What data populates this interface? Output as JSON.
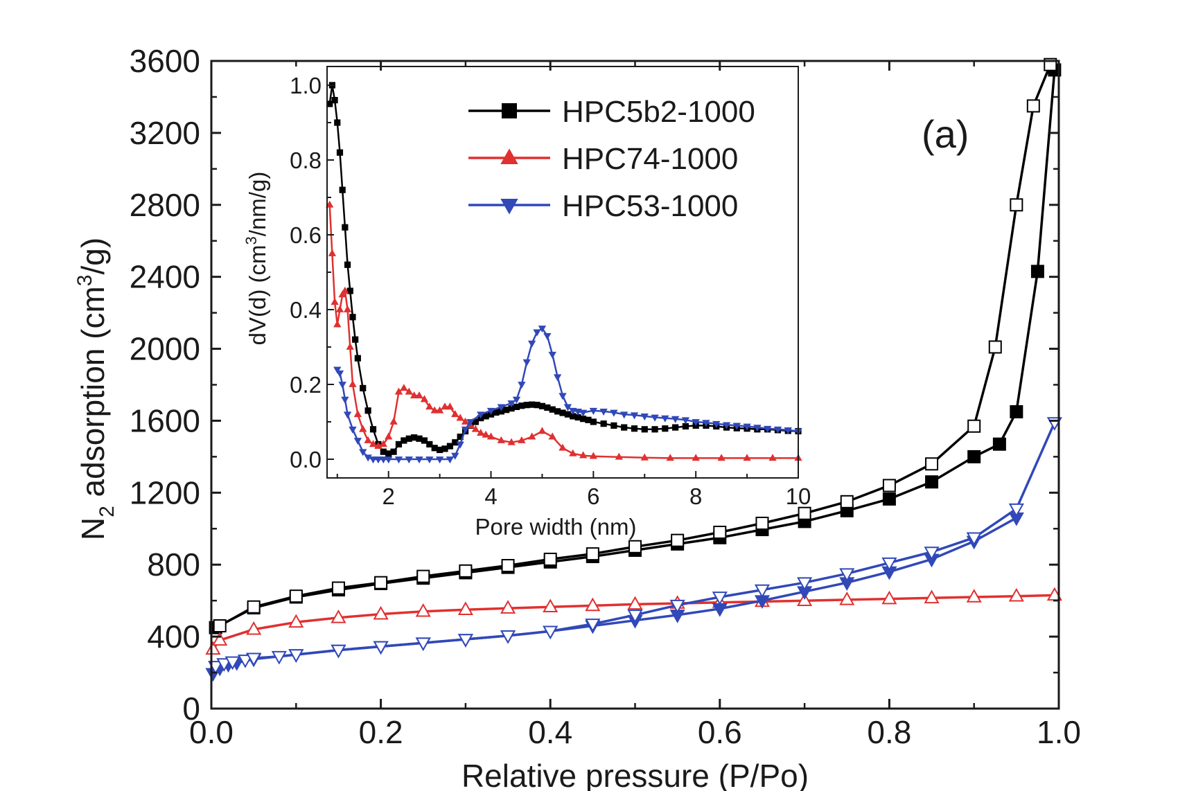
{
  "chart_data": [
    {
      "type": "line",
      "panel_label": "(a)",
      "xlabel": "Relative pressure (P/Po)",
      "ylabel_parts": [
        "N",
        "2",
        " adsorption (cm",
        "3",
        "/g)"
      ],
      "xlim": [
        0,
        1.0
      ],
      "ylim": [
        0,
        3600
      ],
      "x_ticks": [
        "0.0",
        "0.2",
        "0.4",
        "0.6",
        "0.8",
        "1.0"
      ],
      "y_ticks": [
        "0",
        "400",
        "800",
        "1200",
        "1600",
        "2000",
        "2400",
        "2800",
        "3200",
        "3600"
      ],
      "series": [
        {
          "name": "HPC5b2-1000",
          "color": "#000000",
          "marker": "square",
          "branches": [
            {
              "fill": "filled",
              "x": [
                0.005,
                0.05,
                0.1,
                0.15,
                0.2,
                0.25,
                0.3,
                0.35,
                0.4,
                0.45,
                0.5,
                0.55,
                0.6,
                0.65,
                0.7,
                0.75,
                0.8,
                0.85,
                0.9,
                0.93,
                0.95,
                0.975,
                0.995
              ],
              "y": [
                450,
                560,
                620,
                660,
                695,
                725,
                755,
                785,
                815,
                845,
                880,
                915,
                950,
                995,
                1040,
                1100,
                1165,
                1260,
                1400,
                1470,
                1650,
                2430,
                3550
              ]
            },
            {
              "fill": "open",
              "x": [
                0.01,
                0.05,
                0.1,
                0.15,
                0.2,
                0.25,
                0.3,
                0.35,
                0.4,
                0.45,
                0.5,
                0.55,
                0.6,
                0.65,
                0.7,
                0.75,
                0.8,
                0.85,
                0.9,
                0.925,
                0.95,
                0.97,
                0.99
              ],
              "y": [
                460,
                565,
                625,
                670,
                700,
                735,
                765,
                795,
                830,
                860,
                900,
                935,
                980,
                1030,
                1085,
                1150,
                1240,
                1360,
                1570,
                2010,
                2800,
                3350,
                3580
              ]
            }
          ]
        },
        {
          "name": "HPC74-1000",
          "color": "#e03030",
          "marker": "triangle-up",
          "branches": [
            {
              "fill": "open",
              "x": [
                0.002,
                0.01,
                0.05,
                0.1,
                0.15,
                0.2,
                0.25,
                0.3,
                0.35,
                0.4,
                0.45,
                0.5,
                0.55,
                0.6,
                0.65,
                0.7,
                0.75,
                0.8,
                0.85,
                0.9,
                0.95,
                0.995
              ],
              "y": [
                330,
                380,
                440,
                480,
                505,
                525,
                540,
                550,
                558,
                565,
                572,
                580,
                585,
                590,
                595,
                600,
                605,
                610,
                615,
                620,
                625,
                630
              ]
            }
          ]
        },
        {
          "name": "HPC53-1000",
          "color": "#3048b8",
          "marker": "triangle-down",
          "branches": [
            {
              "fill": "filled",
              "x": [
                0.002,
                0.01,
                0.02,
                0.03,
                0.05,
                0.1,
                0.15,
                0.2,
                0.25,
                0.3,
                0.35,
                0.4,
                0.45,
                0.5,
                0.55,
                0.6,
                0.65,
                0.7,
                0.75,
                0.8,
                0.85,
                0.9,
                0.95
              ],
              "y": [
                195,
                225,
                245,
                255,
                275,
                300,
                325,
                345,
                365,
                385,
                405,
                430,
                460,
                490,
                520,
                555,
                600,
                650,
                700,
                760,
                830,
                930,
                1060
              ]
            },
            {
              "fill": "open",
              "x": [
                0.005,
                0.015,
                0.025,
                0.04,
                0.05,
                0.08,
                0.1,
                0.15,
                0.2,
                0.25,
                0.3,
                0.35,
                0.4,
                0.45,
                0.5,
                0.55,
                0.6,
                0.65,
                0.7,
                0.75,
                0.8,
                0.85,
                0.9,
                0.95,
                0.995
              ],
              "y": [
                235,
                250,
                260,
                270,
                280,
                290,
                300,
                325,
                345,
                365,
                385,
                405,
                430,
                470,
                520,
                575,
                620,
                660,
                700,
                750,
                810,
                870,
                950,
                1110,
                1590
              ]
            }
          ]
        }
      ]
    },
    {
      "type": "line",
      "role": "inset",
      "xlabel": "Pore width (nm)",
      "ylabel_parts": [
        "dV(d) (cm",
        "3",
        "/nm/g)"
      ],
      "xlim": [
        0.8,
        10
      ],
      "ylim": [
        -0.05,
        1.05
      ],
      "x_ticks": [
        "2",
        "4",
        "6",
        "8",
        "10"
      ],
      "y_ticks": [
        "0.0",
        "0.2",
        "0.4",
        "0.6",
        "0.8",
        "1.0"
      ],
      "series": [
        {
          "name": "HPC5b2-1000",
          "color": "#000000",
          "marker": "square",
          "x": [
            0.85,
            0.9,
            0.95,
            1.0,
            1.05,
            1.1,
            1.15,
            1.2,
            1.25,
            1.3,
            1.35,
            1.4,
            1.5,
            1.6,
            1.7,
            1.8,
            1.9,
            2.0,
            2.1,
            2.2,
            2.3,
            2.4,
            2.5,
            2.6,
            2.7,
            2.8,
            2.9,
            3.0,
            3.1,
            3.2,
            3.3,
            3.4,
            3.5,
            3.6,
            3.7,
            3.8,
            3.9,
            4.0,
            4.1,
            4.2,
            4.3,
            4.4,
            4.5,
            4.6,
            4.7,
            4.8,
            4.9,
            5.0,
            5.1,
            5.2,
            5.3,
            5.4,
            5.5,
            5.6,
            5.7,
            5.8,
            5.9,
            6.0,
            6.2,
            6.4,
            6.6,
            6.8,
            7.0,
            7.2,
            7.4,
            7.6,
            7.8,
            8.0,
            8.2,
            8.4,
            8.6,
            8.8,
            9.0,
            9.2,
            9.4,
            9.6,
            9.8,
            10.0
          ],
          "y": [
            0.95,
            1.0,
            0.96,
            0.9,
            0.82,
            0.72,
            0.62,
            0.52,
            0.45,
            0.38,
            0.32,
            0.27,
            0.19,
            0.13,
            0.08,
            0.04,
            0.02,
            0.015,
            0.02,
            0.04,
            0.05,
            0.055,
            0.058,
            0.055,
            0.05,
            0.04,
            0.03,
            0.025,
            0.028,
            0.035,
            0.045,
            0.06,
            0.075,
            0.09,
            0.1,
            0.11,
            0.115,
            0.12,
            0.125,
            0.128,
            0.132,
            0.136,
            0.14,
            0.143,
            0.145,
            0.146,
            0.145,
            0.142,
            0.138,
            0.133,
            0.128,
            0.124,
            0.12,
            0.115,
            0.112,
            0.108,
            0.105,
            0.1,
            0.095,
            0.09,
            0.085,
            0.082,
            0.08,
            0.08,
            0.082,
            0.085,
            0.088,
            0.09,
            0.09,
            0.088,
            0.085,
            0.083,
            0.082,
            0.08,
            0.08,
            0.078,
            0.076,
            0.075
          ]
        },
        {
          "name": "HPC74-1000",
          "color": "#e03030",
          "marker": "triangle-up",
          "x": [
            0.85,
            0.9,
            0.95,
            1.0,
            1.05,
            1.1,
            1.15,
            1.2,
            1.25,
            1.3,
            1.4,
            1.5,
            1.6,
            1.7,
            1.8,
            1.9,
            2.0,
            2.1,
            2.2,
            2.3,
            2.4,
            2.5,
            2.6,
            2.7,
            2.8,
            2.9,
            3.0,
            3.1,
            3.2,
            3.3,
            3.4,
            3.5,
            3.6,
            3.7,
            3.8,
            3.9,
            4.0,
            4.2,
            4.4,
            4.6,
            4.8,
            5.0,
            5.2,
            5.4,
            5.6,
            5.8,
            6.0,
            6.5,
            7.0,
            7.5,
            8.0,
            8.5,
            9.0,
            9.5,
            10.0
          ],
          "y": [
            0.68,
            0.55,
            0.42,
            0.36,
            0.4,
            0.44,
            0.45,
            0.4,
            0.3,
            0.2,
            0.12,
            0.08,
            0.05,
            0.04,
            0.035,
            0.04,
            0.06,
            0.1,
            0.18,
            0.19,
            0.18,
            0.17,
            0.17,
            0.16,
            0.14,
            0.13,
            0.13,
            0.14,
            0.14,
            0.12,
            0.11,
            0.1,
            0.09,
            0.08,
            0.07,
            0.065,
            0.06,
            0.05,
            0.045,
            0.05,
            0.06,
            0.075,
            0.06,
            0.03,
            0.015,
            0.01,
            0.008,
            0.006,
            0.004,
            0.003,
            0.003,
            0.003,
            0.003,
            0.003,
            0.003
          ]
        },
        {
          "name": "HPC53-1000",
          "color": "#3048b8",
          "marker": "triangle-down",
          "x": [
            1.0,
            1.05,
            1.1,
            1.15,
            1.2,
            1.3,
            1.4,
            1.5,
            1.6,
            1.7,
            1.8,
            1.9,
            2.0,
            2.2,
            2.4,
            2.6,
            2.8,
            3.0,
            3.2,
            3.3,
            3.4,
            3.5,
            3.6,
            3.8,
            4.0,
            4.2,
            4.4,
            4.5,
            4.6,
            4.7,
            4.8,
            4.9,
            5.0,
            5.1,
            5.2,
            5.3,
            5.4,
            5.5,
            5.6,
            5.7,
            5.8,
            6.0,
            6.2,
            6.4,
            6.6,
            6.8,
            7.0,
            7.2,
            7.4,
            7.6,
            7.8,
            8.0,
            8.2,
            8.4,
            8.6,
            8.8,
            9.0,
            9.2,
            9.4,
            9.6,
            9.8,
            10.0
          ],
          "y": [
            0.24,
            0.23,
            0.2,
            0.16,
            0.12,
            0.08,
            0.05,
            0.02,
            0.005,
            0.0,
            0.0,
            0.0,
            0.0,
            0.0,
            0.0,
            0.0,
            0.0,
            0.0,
            0.0,
            0.01,
            0.04,
            0.08,
            0.1,
            0.12,
            0.13,
            0.14,
            0.15,
            0.16,
            0.2,
            0.26,
            0.31,
            0.34,
            0.35,
            0.33,
            0.28,
            0.22,
            0.17,
            0.14,
            0.13,
            0.128,
            0.125,
            0.13,
            0.128,
            0.125,
            0.12,
            0.118,
            0.115,
            0.112,
            0.11,
            0.108,
            0.105,
            0.1,
            0.098,
            0.095,
            0.092,
            0.09,
            0.088,
            0.085,
            0.082,
            0.08,
            0.078,
            0.075
          ]
        }
      ],
      "legend": {
        "placement": "top",
        "entries": [
          {
            "label": "HPC5b2-1000",
            "color": "#000000",
            "marker": "square"
          },
          {
            "label": "HPC74-1000",
            "color": "#e03030",
            "marker": "triangle-up"
          },
          {
            "label": "HPC53-1000",
            "color": "#3048b8",
            "marker": "triangle-down"
          }
        ]
      }
    }
  ]
}
